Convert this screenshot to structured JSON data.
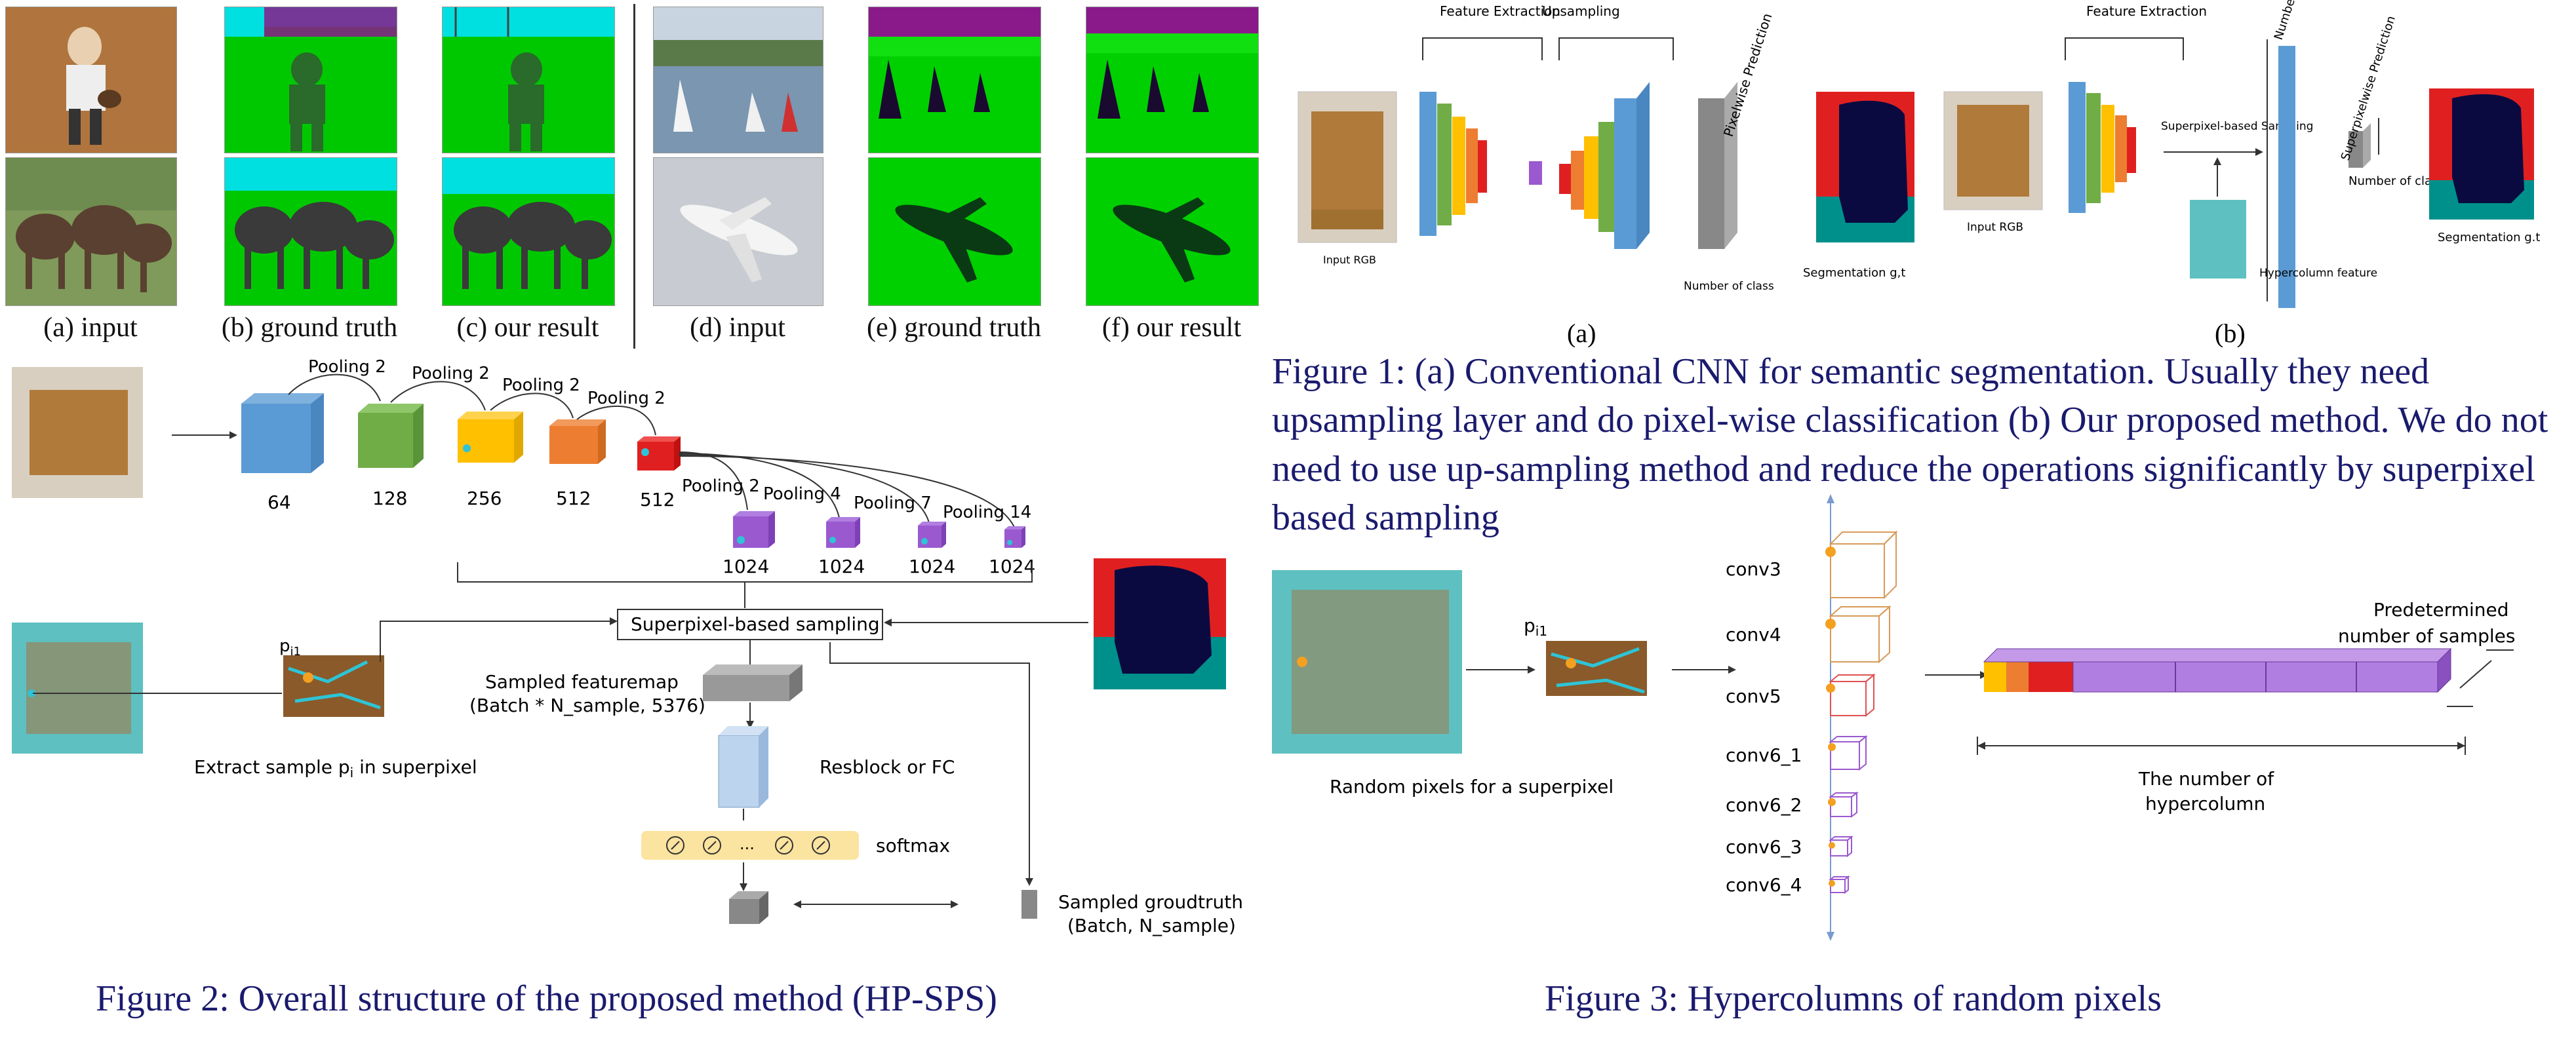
{
  "seg_panels": {
    "a": "(a) input",
    "b": "(b) ground truth",
    "c": "(c) our result",
    "d": "(d) input",
    "e": "(e) ground truth",
    "f": "(f) our result"
  },
  "fig1": {
    "a": {
      "feature_extraction": "Feature Extraction",
      "upsampling": "Upsampling",
      "pixelwise": "Pixelwise Prediction",
      "input_rgb": "Input RGB",
      "number_of_class": "Number of class",
      "segmentation": "Segmentation g,t",
      "sub": "(a)"
    },
    "b": {
      "feature_extraction": "Feature Extraction",
      "superpixel_sampling": "Superpixel-based Sampling",
      "number_of_superpixel": "Number of Superpixel",
      "superpixelwise": "Superpixelwise Prediction",
      "number_of_class": "Number of class",
      "input_rgb": "Input RGB",
      "hypercolumn": "Hypercolumn feature",
      "segmentation": "Segmentation g.t",
      "sub": "(b)"
    },
    "caption": "Figure 1:  (a) Conventional CNN for semantic segmentation. Usually they need upsampling layer and do pixel-wise classification (b) Our proposed method. We do not need to use up-sampling method and reduce the operations significantly by superpixel based sampling"
  },
  "fig2": {
    "pool_labels": [
      "Pooling 2",
      "Pooling 2",
      "Pooling 2",
      "Pooling 2"
    ],
    "channels": [
      "64",
      "128",
      "256",
      "512",
      "512"
    ],
    "pool_branch_labels": [
      "Pooling 2",
      "Pooling 4",
      "Pooling 7",
      "Pooling 14"
    ],
    "branch_channels": [
      "1024",
      "1024",
      "1024",
      "1024"
    ],
    "sampling_box": "Superpixel-based sampling",
    "sampled_feature": "Sampled featuremap",
    "sampled_feature_dims": "(Batch * N_sample, 5376)",
    "resblock": "Resblock or FC",
    "softmax": "softmax",
    "dots": "...",
    "sampled_gt": "Sampled groudtruth",
    "sampled_gt_dims": "(Batch, N_sample)",
    "extract_label_pre": "Extract sample p",
    "extract_label_sub": "i",
    "extract_label_post": " in superpixel",
    "pi1": "p",
    "pi1_sub": "i1",
    "caption": "Figure 2:  Overall structure of the proposed method (HP-SPS)"
  },
  "fig3": {
    "random_pixels": "Random pixels for a superpixel",
    "pi1": "p",
    "pi1_sub": "i1",
    "layers": [
      "conv3",
      "conv4",
      "conv5",
      "conv6_1",
      "conv6_2",
      "conv6_3",
      "conv6_4"
    ],
    "predetermined": "Predetermined",
    "number_of_samples": "number of samples",
    "the_number_of": "The number of",
    "hypercolumn": "hypercolumn",
    "caption": "Figure 3: Hypercolumns of random pixels"
  },
  "colors": {
    "caption_navy": "#1a1a6e",
    "blue": "#5b9bd5",
    "green": "#70ad47",
    "yellow": "#ffc000",
    "orange": "#ed7d31",
    "red": "#e02020",
    "purple": "#9b59d0",
    "seg_green": "#00d000",
    "seg_cyan": "#00e0e0",
    "seg_purple": "#8a1a8a",
    "navy_obj": "#0a0a40",
    "teal": "#00908c"
  }
}
